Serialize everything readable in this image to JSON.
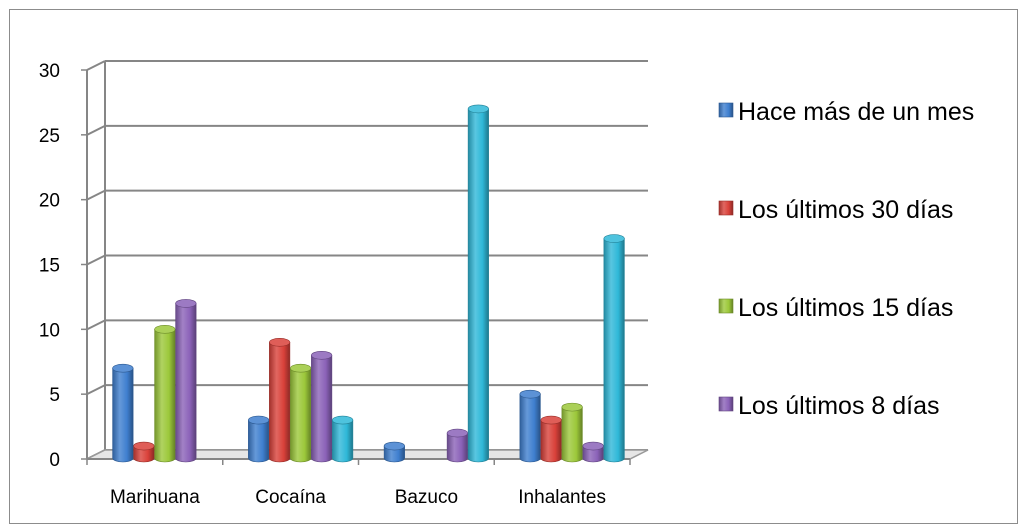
{
  "chart_data": {
    "type": "bar",
    "title": "",
    "xlabel": "",
    "ylabel": "",
    "ylim": [
      0,
      30
    ],
    "yticks": [
      0,
      5,
      10,
      15,
      20,
      25,
      30
    ],
    "grid": true,
    "legend_position": "right",
    "categories": [
      "Marihuana",
      "Cocaína",
      "Bazuco",
      "Inhalantes"
    ],
    "series": [
      {
        "name": "Hace más de un mes",
        "color": "#3f7fcf",
        "values": [
          7,
          3,
          1,
          5
        ]
      },
      {
        "name": "Los últimos 30 días",
        "color": "#d9413a",
        "values": [
          1,
          9,
          0,
          3
        ]
      },
      {
        "name": "Los últimos 15 días",
        "color": "#9cc83a",
        "values": [
          10,
          7,
          0,
          4
        ]
      },
      {
        "name": "Los últimos 8 días",
        "color": "#8b62b8",
        "values": [
          12,
          8,
          2,
          1
        ]
      },
      {
        "name": "",
        "color": "#2fb8d8",
        "values": [
          0,
          3,
          27,
          17
        ]
      }
    ]
  }
}
